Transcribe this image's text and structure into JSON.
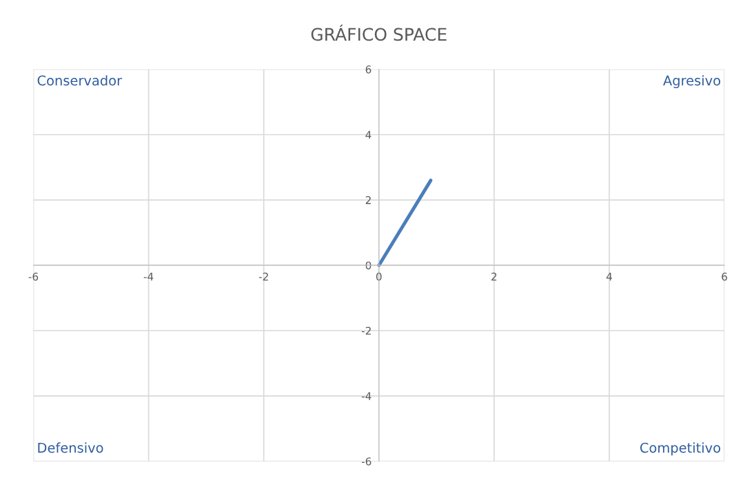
{
  "chart_data": {
    "type": "line",
    "title": "GRÁFICO SPACE",
    "x": [
      0,
      0.9
    ],
    "series": [
      {
        "color": "#4a7ebb",
        "values": [
          0,
          2.6
        ]
      }
    ],
    "xlim": [
      -6,
      6
    ],
    "ylim": [
      -6,
      6
    ],
    "xticks": [
      -6,
      -4,
      -2,
      0,
      2,
      4,
      6
    ],
    "yticks": [
      -6,
      -4,
      -2,
      0,
      2,
      4,
      6
    ],
    "grid": true,
    "marker": "none",
    "line_style": "solid",
    "annotations": [
      "Conservador",
      "Agresivo",
      "Defensivo",
      "Competitivo"
    ]
  }
}
